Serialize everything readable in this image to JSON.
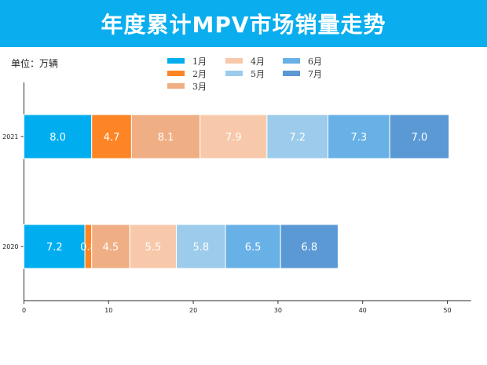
{
  "chart_data": {
    "type": "bar",
    "orientation": "horizontal",
    "stacked": true,
    "title": "年度累计MPV市场销量走势",
    "unit_label": "单位：万辆",
    "categories": [
      "2021",
      "2020"
    ],
    "series": [
      {
        "name": "1月",
        "values": [
          8.0,
          7.2
        ],
        "color": "#00aeef"
      },
      {
        "name": "2月",
        "values": [
          4.7,
          0.8
        ],
        "color": "#fd8526"
      },
      {
        "name": "3月",
        "values": [
          8.1,
          4.5
        ],
        "color": "#f0ae84"
      },
      {
        "name": "4月",
        "values": [
          7.9,
          5.5
        ],
        "color": "#f7c9aa"
      },
      {
        "name": "5月",
        "values": [
          7.2,
          5.8
        ],
        "color": "#9ccbeb"
      },
      {
        "name": "6月",
        "values": [
          7.3,
          6.5
        ],
        "color": "#68b1e6"
      },
      {
        "name": "7月",
        "values": [
          7.0,
          6.8
        ],
        "color": "#5a99d4"
      }
    ],
    "data_labels": [
      [
        "8.0",
        "4.7",
        "8.1",
        "7.9",
        "7.2",
        "7.3",
        "7.0"
      ],
      [
        "7.2",
        "0.8",
        "4.5",
        "5.5",
        "5.8",
        "6.5",
        "6.8"
      ]
    ],
    "xticks": [
      "0",
      "10",
      "20",
      "30",
      "40",
      "50"
    ],
    "xlim": [
      0,
      52.8
    ],
    "grid": false,
    "legend_placement": "top-center"
  }
}
